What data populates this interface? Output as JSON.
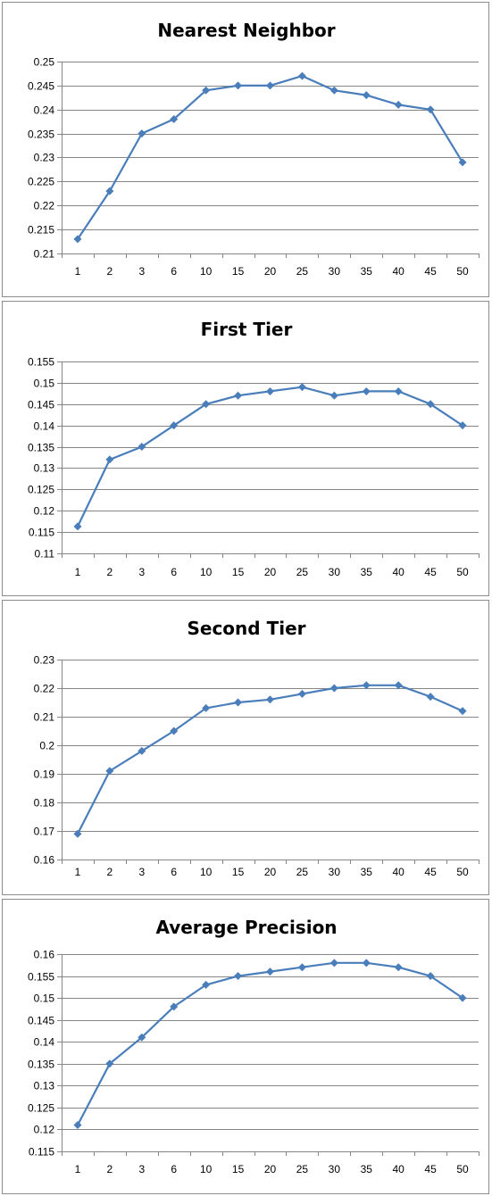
{
  "colors": {
    "series": "#4a7ebb",
    "marker": "#4a7ebb",
    "grid": "#868686"
  },
  "chart_data": [
    {
      "type": "line",
      "title": "Nearest Neighbor",
      "categories": [
        "1",
        "2",
        "3",
        "6",
        "10",
        "15",
        "20",
        "25",
        "30",
        "35",
        "40",
        "45",
        "50"
      ],
      "values": [
        0.213,
        0.223,
        0.235,
        0.238,
        0.244,
        0.245,
        0.245,
        0.247,
        0.244,
        0.243,
        0.241,
        0.24,
        0.229
      ],
      "ylim": [
        0.21,
        0.25
      ],
      "yticks": [
        "0.21",
        "0.215",
        "0.22",
        "0.225",
        "0.23",
        "0.235",
        "0.24",
        "0.245",
        "0.25"
      ],
      "grid": true,
      "legend": "none"
    },
    {
      "type": "line",
      "title": "First Tier",
      "categories": [
        "1",
        "2",
        "3",
        "6",
        "10",
        "15",
        "20",
        "25",
        "30",
        "35",
        "40",
        "45",
        "50"
      ],
      "values": [
        0.1163,
        0.132,
        0.135,
        0.14,
        0.145,
        0.147,
        0.148,
        0.149,
        0.147,
        0.148,
        0.148,
        0.145,
        0.14
      ],
      "ylim": [
        0.11,
        0.155
      ],
      "yticks": [
        "0.11",
        "0.115",
        "0.12",
        "0.125",
        "0.13",
        "0.135",
        "0.14",
        "0.145",
        "0.15",
        "0.155"
      ],
      "grid": true,
      "legend": "none"
    },
    {
      "type": "line",
      "title": "Second Tier",
      "categories": [
        "1",
        "2",
        "3",
        "6",
        "10",
        "15",
        "20",
        "25",
        "30",
        "35",
        "40",
        "45",
        "50"
      ],
      "values": [
        0.169,
        0.191,
        0.198,
        0.205,
        0.213,
        0.215,
        0.216,
        0.218,
        0.22,
        0.221,
        0.221,
        0.217,
        0.212
      ],
      "ylim": [
        0.16,
        0.23
      ],
      "yticks": [
        "0.16",
        "0.17",
        "0.18",
        "0.19",
        "0.2",
        "0.21",
        "0.22",
        "0.23"
      ],
      "grid": true,
      "legend": "none"
    },
    {
      "type": "line",
      "title": "Average Precision",
      "categories": [
        "1",
        "2",
        "3",
        "6",
        "10",
        "15",
        "20",
        "25",
        "30",
        "35",
        "40",
        "45",
        "50"
      ],
      "values": [
        0.121,
        0.135,
        0.141,
        0.148,
        0.153,
        0.155,
        0.156,
        0.157,
        0.158,
        0.158,
        0.157,
        0.155,
        0.15
      ],
      "ylim": [
        0.115,
        0.16
      ],
      "yticks": [
        "0.115",
        "0.12",
        "0.125",
        "0.13",
        "0.135",
        "0.14",
        "0.145",
        "0.15",
        "0.155",
        "0.16"
      ],
      "grid": true,
      "legend": "none"
    }
  ]
}
